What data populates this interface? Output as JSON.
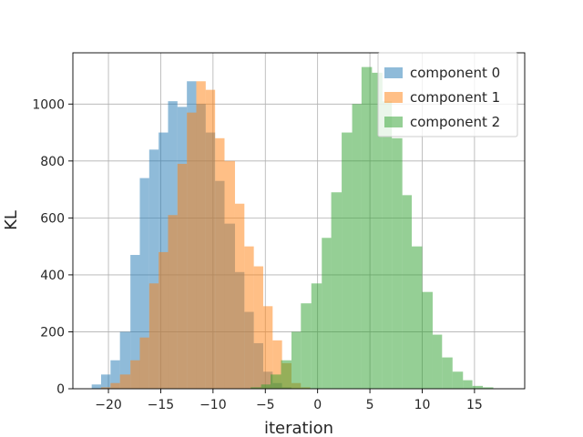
{
  "chart_data": {
    "type": "bar",
    "subtype": "overlapping-histogram",
    "xlabel": "iteration",
    "ylabel": "KL",
    "xlim": [
      -23.4,
      19.8
    ],
    "ylim": [
      0,
      1180
    ],
    "xticks": [
      -20,
      -15,
      -10,
      -5,
      0,
      5,
      10,
      15
    ],
    "yticks": [
      0,
      200,
      400,
      600,
      800,
      1000
    ],
    "grid": true,
    "legend_position": "top-right",
    "bar_alpha": 0.5,
    "series": [
      {
        "name": "component 0",
        "color": "#1f77b4",
        "bins": [
          {
            "x0": -21.6,
            "x1": -20.7,
            "y": 15
          },
          {
            "x0": -20.7,
            "x1": -19.8,
            "y": 50
          },
          {
            "x0": -19.8,
            "x1": -18.9,
            "y": 100
          },
          {
            "x0": -18.9,
            "x1": -17.9,
            "y": 200
          },
          {
            "x0": -17.9,
            "x1": -17.0,
            "y": 470
          },
          {
            "x0": -17.0,
            "x1": -16.1,
            "y": 740
          },
          {
            "x0": -16.1,
            "x1": -15.2,
            "y": 840
          },
          {
            "x0": -15.2,
            "x1": -14.3,
            "y": 900
          },
          {
            "x0": -14.3,
            "x1": -13.4,
            "y": 1010
          },
          {
            "x0": -13.4,
            "x1": -12.5,
            "y": 990
          },
          {
            "x0": -12.5,
            "x1": -11.6,
            "y": 1080
          },
          {
            "x0": -11.6,
            "x1": -10.7,
            "y": 1000
          },
          {
            "x0": -10.7,
            "x1": -9.8,
            "y": 900
          },
          {
            "x0": -9.8,
            "x1": -8.9,
            "y": 730
          },
          {
            "x0": -8.9,
            "x1": -7.9,
            "y": 580
          },
          {
            "x0": -7.9,
            "x1": -7.0,
            "y": 410
          },
          {
            "x0": -7.0,
            "x1": -6.1,
            "y": 270
          },
          {
            "x0": -6.1,
            "x1": -5.2,
            "y": 160
          },
          {
            "x0": -5.2,
            "x1": -4.3,
            "y": 60
          },
          {
            "x0": -4.3,
            "x1": -3.4,
            "y": 20
          },
          {
            "x0": -3.4,
            "x1": -2.5,
            "y": 5
          }
        ]
      },
      {
        "name": "component 1",
        "color": "#ff7f0e",
        "bins": [
          {
            "x0": -20.7,
            "x1": -19.8,
            "y": 5
          },
          {
            "x0": -19.8,
            "x1": -18.9,
            "y": 20
          },
          {
            "x0": -18.9,
            "x1": -17.9,
            "y": 50
          },
          {
            "x0": -17.9,
            "x1": -17.0,
            "y": 100
          },
          {
            "x0": -17.0,
            "x1": -16.1,
            "y": 180
          },
          {
            "x0": -16.1,
            "x1": -15.2,
            "y": 370
          },
          {
            "x0": -15.2,
            "x1": -14.3,
            "y": 480
          },
          {
            "x0": -14.3,
            "x1": -13.4,
            "y": 610
          },
          {
            "x0": -13.4,
            "x1": -12.5,
            "y": 790
          },
          {
            "x0": -12.5,
            "x1": -11.6,
            "y": 970
          },
          {
            "x0": -11.6,
            "x1": -10.7,
            "y": 1080
          },
          {
            "x0": -10.7,
            "x1": -9.8,
            "y": 1050
          },
          {
            "x0": -9.8,
            "x1": -8.9,
            "y": 880
          },
          {
            "x0": -8.9,
            "x1": -7.9,
            "y": 800
          },
          {
            "x0": -7.9,
            "x1": -7.0,
            "y": 650
          },
          {
            "x0": -7.0,
            "x1": -6.1,
            "y": 500
          },
          {
            "x0": -6.1,
            "x1": -5.2,
            "y": 430
          },
          {
            "x0": -5.2,
            "x1": -4.3,
            "y": 290
          },
          {
            "x0": -4.3,
            "x1": -3.4,
            "y": 170
          },
          {
            "x0": -3.4,
            "x1": -2.5,
            "y": 90
          },
          {
            "x0": -2.5,
            "x1": -1.6,
            "y": 20
          },
          {
            "x0": -1.6,
            "x1": -0.7,
            "y": 5
          }
        ]
      },
      {
        "name": "component 2",
        "color": "#2ca02c",
        "bins": [
          {
            "x0": -6.4,
            "x1": -5.4,
            "y": 5
          },
          {
            "x0": -5.4,
            "x1": -4.5,
            "y": 15
          },
          {
            "x0": -4.5,
            "x1": -3.5,
            "y": 50
          },
          {
            "x0": -3.5,
            "x1": -2.5,
            "y": 100
          },
          {
            "x0": -2.5,
            "x1": -1.6,
            "y": 200
          },
          {
            "x0": -1.6,
            "x1": -0.6,
            "y": 300
          },
          {
            "x0": -0.6,
            "x1": 0.4,
            "y": 370
          },
          {
            "x0": 0.4,
            "x1": 1.3,
            "y": 530
          },
          {
            "x0": 1.3,
            "x1": 2.3,
            "y": 690
          },
          {
            "x0": 2.3,
            "x1": 3.3,
            "y": 900
          },
          {
            "x0": 3.3,
            "x1": 4.2,
            "y": 1000
          },
          {
            "x0": 4.2,
            "x1": 5.2,
            "y": 1130
          },
          {
            "x0": 5.2,
            "x1": 6.2,
            "y": 1110
          },
          {
            "x0": 6.2,
            "x1": 7.1,
            "y": 1010
          },
          {
            "x0": 7.1,
            "x1": 8.1,
            "y": 880
          },
          {
            "x0": 8.1,
            "x1": 9.0,
            "y": 680
          },
          {
            "x0": 9.0,
            "x1": 10.0,
            "y": 500
          },
          {
            "x0": 10.0,
            "x1": 11.0,
            "y": 340
          },
          {
            "x0": 11.0,
            "x1": 11.9,
            "y": 190
          },
          {
            "x0": 11.9,
            "x1": 12.9,
            "y": 110
          },
          {
            "x0": 12.9,
            "x1": 13.9,
            "y": 60
          },
          {
            "x0": 13.9,
            "x1": 14.8,
            "y": 30
          },
          {
            "x0": 14.8,
            "x1": 15.8,
            "y": 10
          },
          {
            "x0": 15.8,
            "x1": 16.8,
            "y": 5
          }
        ]
      }
    ]
  }
}
